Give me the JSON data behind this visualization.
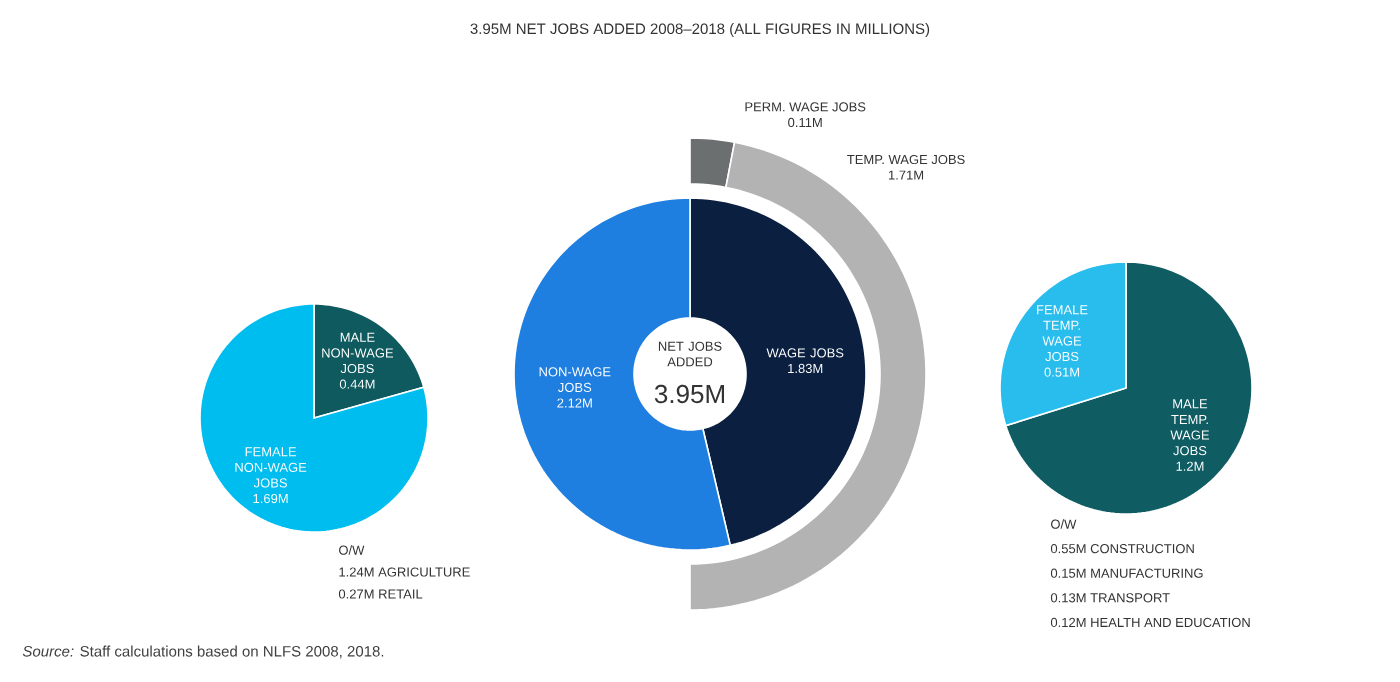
{
  "chart_data": [
    {
      "type": "pie",
      "categories": [
        "MALE NON-WAGE JOBS",
        "FEMALE NON-WAGE JOBS"
      ],
      "values": [
        0.44,
        1.69
      ],
      "colors": [
        "#0e5a5e",
        "#00bdef"
      ],
      "value_labels": [
        "0.44M",
        "1.69M"
      ],
      "annotations": [
        "O/W",
        "1.24M AGRICULTURE",
        "0.27M RETAIL"
      ]
    },
    {
      "type": "donut",
      "title": "3.95M NET JOBS ADDED 2008–2018 (ALL FIGURES IN MILLIONS)",
      "categories": [
        "WAGE JOBS",
        "NON-WAGE JOBS"
      ],
      "values": [
        1.83,
        2.12
      ],
      "colors": [
        "#0b2040",
        "#1f7fe0"
      ],
      "value_labels": [
        "1.83M",
        "2.12M"
      ],
      "annotations": [
        "NET JOBS ADDED",
        "3.95M",
        "*Source:* Staff calculations based on NLFS 2008, 2018."
      ]
    },
    {
      "type": "other",
      "categories": [
        "PERM. WAGE JOBS",
        "TEMP. WAGE JOBS"
      ],
      "values": [
        0.11,
        1.71
      ],
      "colors": [
        "#6b6f70",
        "#b3b3b3"
      ],
      "value_labels": [
        "0.11M",
        "1.71M"
      ]
    },
    {
      "type": "pie",
      "categories": [
        "MALE TEMP. WAGE JOBS",
        "FEMALE TEMP. WAGE JOBS"
      ],
      "values": [
        1.2,
        0.51
      ],
      "colors": [
        "#0f5c63",
        "#29bdee"
      ],
      "value_labels": [
        "1.2M",
        "0.51M"
      ],
      "annotations": [
        "O/W",
        "0.55M CONSTRUCTION",
        "0.15M MANUFACTURING",
        "0.13M TRANSPORT",
        "0.12M HEALTH AND EDUCATION"
      ]
    }
  ]
}
